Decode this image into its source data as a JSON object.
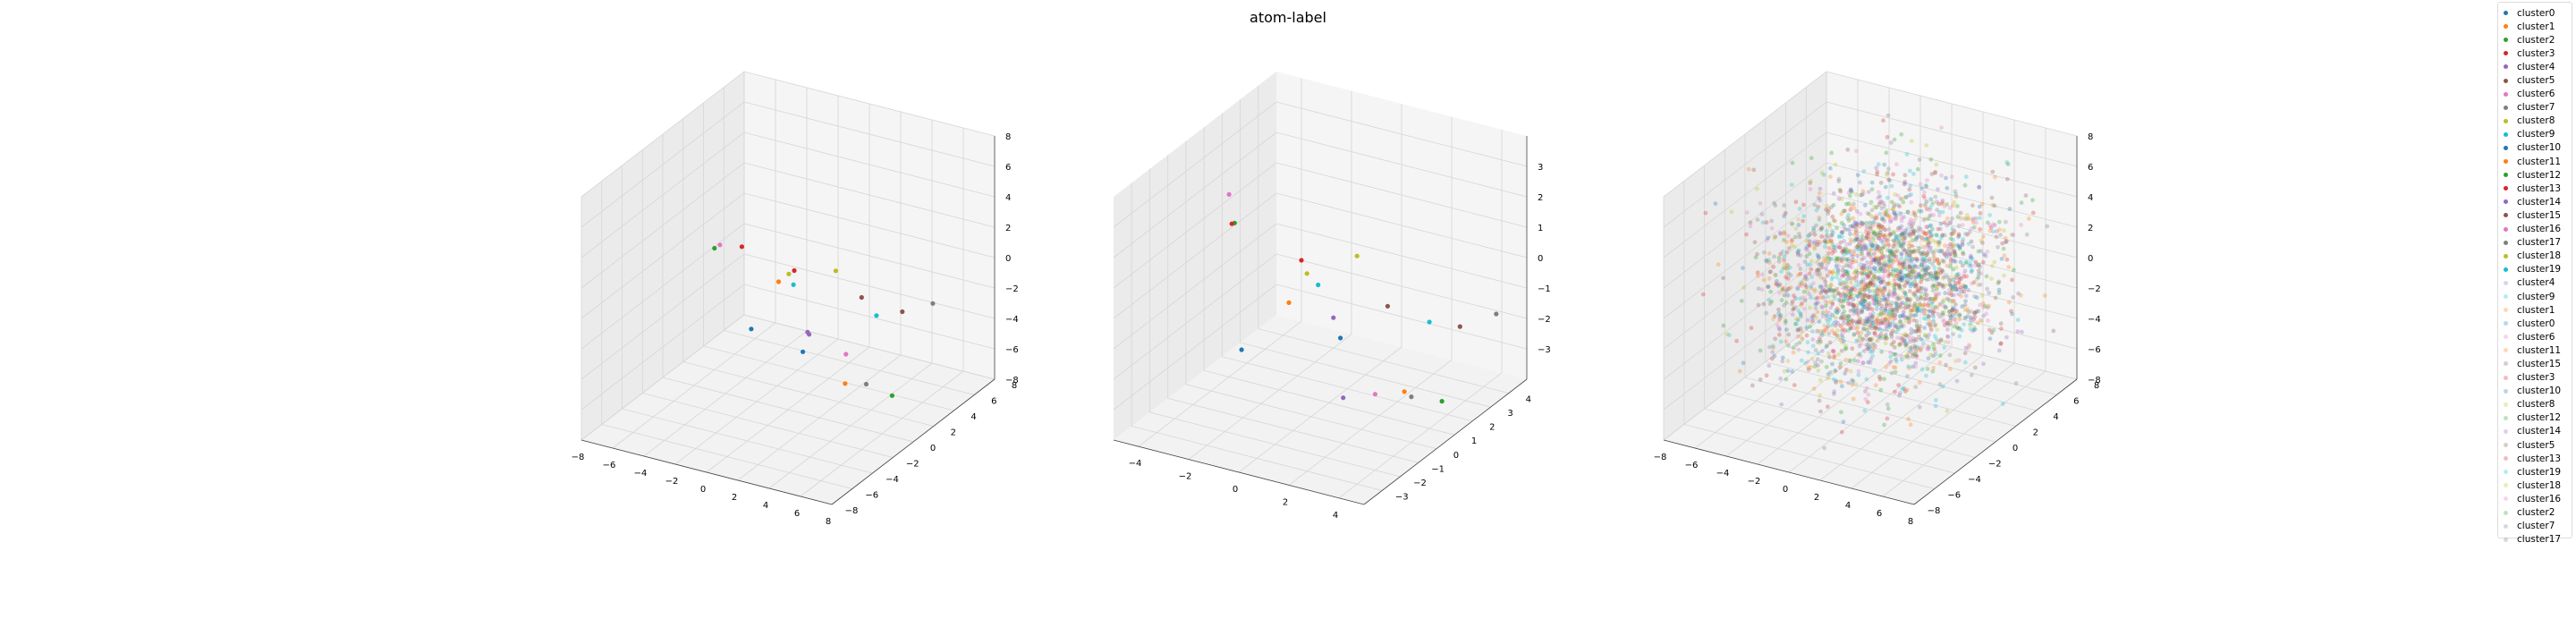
{
  "title": "atom-label",
  "colors": {
    "tab10": [
      "#1f77b4",
      "#ff7f0e",
      "#2ca02c",
      "#d62728",
      "#9467bd",
      "#8c564b",
      "#e377c2",
      "#7f7f7f",
      "#bcbd22",
      "#17becf"
    ]
  },
  "legend": {
    "placement": "right",
    "items": [
      {
        "label": "cluster0",
        "color": "#1f77b4",
        "alpha": 1
      },
      {
        "label": "cluster1",
        "color": "#ff7f0e",
        "alpha": 1
      },
      {
        "label": "cluster2",
        "color": "#2ca02c",
        "alpha": 1
      },
      {
        "label": "cluster3",
        "color": "#d62728",
        "alpha": 1
      },
      {
        "label": "cluster4",
        "color": "#9467bd",
        "alpha": 1
      },
      {
        "label": "cluster5",
        "color": "#8c564b",
        "alpha": 1
      },
      {
        "label": "cluster6",
        "color": "#e377c2",
        "alpha": 1
      },
      {
        "label": "cluster7",
        "color": "#7f7f7f",
        "alpha": 1
      },
      {
        "label": "cluster8",
        "color": "#bcbd22",
        "alpha": 1
      },
      {
        "label": "cluster9",
        "color": "#17becf",
        "alpha": 1
      },
      {
        "label": "cluster10",
        "color": "#1f77b4",
        "alpha": 1
      },
      {
        "label": "cluster11",
        "color": "#ff7f0e",
        "alpha": 1
      },
      {
        "label": "cluster12",
        "color": "#2ca02c",
        "alpha": 1
      },
      {
        "label": "cluster13",
        "color": "#d62728",
        "alpha": 1
      },
      {
        "label": "cluster14",
        "color": "#9467bd",
        "alpha": 1
      },
      {
        "label": "cluster15",
        "color": "#8c564b",
        "alpha": 1
      },
      {
        "label": "cluster16",
        "color": "#e377c2",
        "alpha": 1
      },
      {
        "label": "cluster17",
        "color": "#7f7f7f",
        "alpha": 1
      },
      {
        "label": "cluster18",
        "color": "#bcbd22",
        "alpha": 1
      },
      {
        "label": "cluster19",
        "color": "#17becf",
        "alpha": 1
      },
      {
        "label": "cluster4",
        "color": "#9467bd",
        "alpha": 0.3
      },
      {
        "label": "cluster9",
        "color": "#17becf",
        "alpha": 0.3
      },
      {
        "label": "cluster1",
        "color": "#ff7f0e",
        "alpha": 0.3
      },
      {
        "label": "cluster0",
        "color": "#1f77b4",
        "alpha": 0.3
      },
      {
        "label": "cluster6",
        "color": "#e377c2",
        "alpha": 0.3
      },
      {
        "label": "cluster11",
        "color": "#ff7f0e",
        "alpha": 0.3
      },
      {
        "label": "cluster15",
        "color": "#8c564b",
        "alpha": 0.3
      },
      {
        "label": "cluster3",
        "color": "#d62728",
        "alpha": 0.3
      },
      {
        "label": "cluster10",
        "color": "#1f77b4",
        "alpha": 0.3
      },
      {
        "label": "cluster8",
        "color": "#bcbd22",
        "alpha": 0.3
      },
      {
        "label": "cluster12",
        "color": "#2ca02c",
        "alpha": 0.3
      },
      {
        "label": "cluster14",
        "color": "#9467bd",
        "alpha": 0.3
      },
      {
        "label": "cluster5",
        "color": "#8c564b",
        "alpha": 0.3
      },
      {
        "label": "cluster13",
        "color": "#d62728",
        "alpha": 0.3
      },
      {
        "label": "cluster19",
        "color": "#17becf",
        "alpha": 0.3
      },
      {
        "label": "cluster18",
        "color": "#bcbd22",
        "alpha": 0.3
      },
      {
        "label": "cluster16",
        "color": "#e377c2",
        "alpha": 0.3
      },
      {
        "label": "cluster2",
        "color": "#2ca02c",
        "alpha": 0.3
      },
      {
        "label": "cluster7",
        "color": "#7f7f7f",
        "alpha": 0.3
      },
      {
        "label": "cluster17",
        "color": "#7f7f7f",
        "alpha": 0.3
      }
    ]
  },
  "chart_data": [
    {
      "type": "scatter3d",
      "grid": true,
      "xlim": [
        -8,
        8
      ],
      "ylim": [
        -8,
        8
      ],
      "zlim": [
        -8,
        8
      ],
      "xticks": [
        -8,
        -6,
        -4,
        -2,
        0,
        2,
        4,
        6,
        8
      ],
      "yticks": [
        -8,
        -6,
        -4,
        -2,
        0,
        2,
        4,
        6,
        8
      ],
      "zticks": [
        -8,
        -6,
        -4,
        -2,
        0,
        2,
        4,
        6,
        8
      ],
      "points": [
        {
          "series": "cluster0",
          "x": -3.0,
          "y": 1.0,
          "z": -4.0
        },
        {
          "series": "cluster1",
          "x": 2.0,
          "y": -4.0,
          "z": 3.0
        },
        {
          "series": "cluster2",
          "x": -6.0,
          "y": 2.0,
          "z": 0.0
        },
        {
          "series": "cluster3",
          "x": -1.0,
          "y": -3.0,
          "z": 4.0
        },
        {
          "series": "cluster4",
          "x": 2.0,
          "y": -1.0,
          "z": -2.0
        },
        {
          "series": "cluster5",
          "x": 6.0,
          "y": 2.0,
          "z": -1.0
        },
        {
          "series": "cluster6",
          "x": -5.0,
          "y": 1.0,
          "z": 1.0
        },
        {
          "series": "cluster7",
          "x": 6.0,
          "y": 5.0,
          "z": -2.0
        },
        {
          "series": "cluster8",
          "x": 5.0,
          "y": -3.0,
          "z": 4.0
        },
        {
          "series": "cluster9",
          "x": 1.0,
          "y": -1.0,
          "z": 1.0
        },
        {
          "series": "cluster10",
          "x": -1.0,
          "y": 3.0,
          "z": -6.0
        },
        {
          "series": "cluster11",
          "x": 3.0,
          "y": 1.0,
          "z": -6.0
        },
        {
          "series": "cluster12",
          "x": 6.0,
          "y": 1.0,
          "z": -6.0
        },
        {
          "series": "cluster13",
          "x": 3.0,
          "y": -4.0,
          "z": 4.0
        },
        {
          "series": "cluster14",
          "x": -2.0,
          "y": 5.0,
          "z": -6.0
        },
        {
          "series": "cluster15",
          "x": 6.0,
          "y": -2.0,
          "z": 2.0
        },
        {
          "series": "cluster16",
          "x": 5.0,
          "y": -2.0,
          "z": -2.0
        },
        {
          "series": "cluster17",
          "x": 5.0,
          "y": 0.0,
          "z": -5.0
        },
        {
          "series": "cluster18",
          "x": 2.0,
          "y": -3.0,
          "z": 3.0
        },
        {
          "series": "cluster19",
          "x": 5.0,
          "y": 1.0,
          "z": -1.0
        }
      ]
    },
    {
      "type": "scatter3d",
      "grid": true,
      "xlim": [
        -5,
        5
      ],
      "ylim": [
        -4,
        5
      ],
      "zlim": [
        -4,
        4
      ],
      "xticks": [
        -4,
        -2,
        0,
        2,
        4
      ],
      "yticks": [
        -3,
        -2,
        -1,
        0,
        1,
        2,
        3,
        4
      ],
      "zticks": [
        -3,
        -2,
        -1,
        0,
        1,
        2,
        3
      ],
      "points": [
        {
          "series": "cluster0",
          "x": -3.5,
          "y": 1.0,
          "z": -3.0
        },
        {
          "series": "cluster1",
          "x": 2.0,
          "y": -4.0,
          "z": 2.0
        },
        {
          "series": "cluster2",
          "x": -4.5,
          "y": 2.0,
          "z": 0.5
        },
        {
          "series": "cluster3",
          "x": -1.0,
          "y": -3.0,
          "z": 3.5
        },
        {
          "series": "cluster4",
          "x": 2.0,
          "y": -1.0,
          "z": -2.5
        },
        {
          "series": "cluster5",
          "x": 4.5,
          "y": 2.0,
          "z": -1.0
        },
        {
          "series": "cluster6",
          "x": -4.0,
          "y": 1.0,
          "z": 2.0
        },
        {
          "series": "cluster7",
          "x": 4.5,
          "y": 4.0,
          "z": -1.5
        },
        {
          "series": "cluster8",
          "x": 4.0,
          "y": -3.0,
          "z": 3.5
        },
        {
          "series": "cluster9",
          "x": 1.0,
          "y": -1.0,
          "z": 1.0
        },
        {
          "series": "cluster10",
          "x": -1.0,
          "y": 3.0,
          "z": -3.0
        },
        {
          "series": "cluster11",
          "x": 3.0,
          "y": 1.0,
          "z": -3.0
        },
        {
          "series": "cluster12",
          "x": 4.5,
          "y": 1.0,
          "z": -3.0
        },
        {
          "series": "cluster13",
          "x": 2.5,
          "y": -4.0,
          "z": 3.5
        },
        {
          "series": "cluster14",
          "x": -2.0,
          "y": 4.0,
          "z": -3.0
        },
        {
          "series": "cluster15",
          "x": 4.5,
          "y": -2.0,
          "z": 1.5
        },
        {
          "series": "cluster16",
          "x": 4.0,
          "y": -2.0,
          "z": -1.5
        },
        {
          "series": "cluster17",
          "x": 4.0,
          "y": 0.0,
          "z": -2.5
        },
        {
          "series": "cluster18",
          "x": 2.0,
          "y": -3.0,
          "z": 2.5
        },
        {
          "series": "cluster19",
          "x": 4.0,
          "y": 1.0,
          "z": -0.5
        }
      ]
    },
    {
      "type": "scatter3d",
      "grid": true,
      "xlim": [
        -8,
        8
      ],
      "ylim": [
        -8,
        8
      ],
      "zlim": [
        -8,
        8
      ],
      "xticks": [
        -8,
        -6,
        -4,
        -2,
        0,
        2,
        4,
        6,
        8
      ],
      "yticks": [
        -8,
        -6,
        -4,
        -2,
        0,
        2,
        4,
        6,
        8
      ],
      "zticks": [
        -8,
        -6,
        -4,
        -2,
        0,
        2,
        4,
        6,
        8
      ],
      "cloud": {
        "center": [
          0.5,
          0.5,
          0.5
        ],
        "spread": [
          3.2,
          3.2,
          2.8
        ],
        "alpha": 0.3
      }
    }
  ]
}
